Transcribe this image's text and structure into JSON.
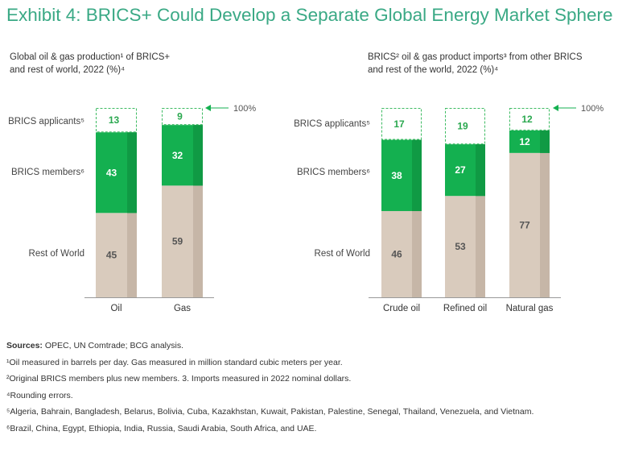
{
  "title": "Exhibit 4: BRICS+ Could Develop a Separate Global Energy Market Sphere",
  "colors": {
    "title": "#3aa985",
    "members": "#14b050",
    "members_shade": "#109a44",
    "rest": "#d9cbbd",
    "rest_shade": "#c6b6a7",
    "applicants_border": "#3dbb62",
    "applicants_text": "#2aa84f"
  },
  "chart_data": [
    {
      "type": "bar",
      "stacked": true,
      "title_lines": [
        "Global oil & gas production¹ of BRICS+",
        "and rest of world, 2022 (%)⁴"
      ],
      "categories": [
        "Oil",
        "Gas"
      ],
      "series": [
        {
          "name": "Rest of World",
          "values": [
            45,
            59
          ]
        },
        {
          "name": "BRICS members⁶",
          "values": [
            43,
            32
          ]
        },
        {
          "name": "BRICS applicants⁵",
          "values": [
            13,
            9
          ]
        }
      ],
      "total_marker": "100%",
      "ylim": [
        0,
        100
      ]
    },
    {
      "type": "bar",
      "stacked": true,
      "title_lines": [
        "BRICS² oil & gas product imports³ from other BRICS",
        "and rest of the world, 2022 (%)⁴"
      ],
      "categories": [
        "Crude oil",
        "Refined oil",
        "Natural gas"
      ],
      "series": [
        {
          "name": "Rest of World",
          "values": [
            46,
            53,
            77
          ]
        },
        {
          "name": "BRICS members⁶",
          "values": [
            38,
            27,
            12
          ]
        },
        {
          "name": "BRICS applicants⁵",
          "values": [
            17,
            19,
            12
          ]
        }
      ],
      "total_marker": "100%",
      "ylim": [
        0,
        100
      ]
    }
  ],
  "notes": {
    "sources_label": "Sources:",
    "sources_text": " OPEC, UN Comtrade; BCG analysis.",
    "lines": [
      "¹Oil measured in barrels per day. Gas measured in million standard cubic meters per year.",
      "²Original BRICS members plus new members. 3. Imports measured in 2022 nominal dollars.",
      "⁴Rounding errors.",
      "⁵Algeria, Bahrain, Bangladesh, Belarus, Bolivia, Cuba, Kazakhstan, Kuwait, Pakistan, Palestine, Senegal, Thailand, Venezuela, and Vietnam.",
      "⁶Brazil, China, Egypt, Ethiopia, India, Russia, Saudi Arabia, South Africa, and UAE."
    ]
  }
}
